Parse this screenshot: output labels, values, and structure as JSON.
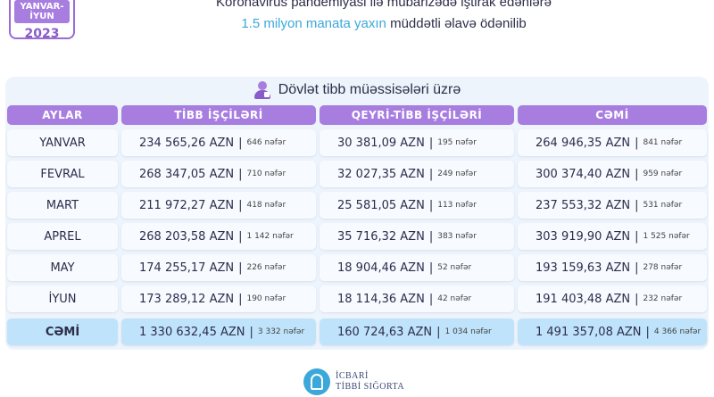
{
  "period": {
    "range": "YANVAR-İYUN",
    "year": "2023"
  },
  "headline": {
    "line1": "Koronavirus pandemiyasi ilə mübarizədə iştirak edənlərə",
    "line2_accent": "1.5 milyon manata yaxın",
    "line2_rest": " müddətli əlavə ödənilib"
  },
  "subtitle": "Dövlət tibb müəssisələri üzrə",
  "columns": [
    "AYLAR",
    "TİBB İŞÇİLƏRİ",
    "QEYRİ-TİBB İŞÇİLƏRİ",
    "CƏMİ"
  ],
  "rows": [
    {
      "month": "YANVAR",
      "med_amt": "234 565,26 AZN",
      "med_cnt": "646 nəfər",
      "non_amt": "30 381,09 AZN",
      "non_cnt": "195 nəfər",
      "tot_amt": "264 946,35 AZN",
      "tot_cnt": "841 nəfər"
    },
    {
      "month": "FEVRAL",
      "med_amt": "268 347,05 AZN",
      "med_cnt": "710 nəfər",
      "non_amt": "32 027,35 AZN",
      "non_cnt": "249 nəfər",
      "tot_amt": "300 374,40 AZN",
      "tot_cnt": "959 nəfər"
    },
    {
      "month": "MART",
      "med_amt": "211 972,27 AZN",
      "med_cnt": "418 nəfər",
      "non_amt": "25 581,05 AZN",
      "non_cnt": "113 nəfər",
      "tot_amt": "237 553,32 AZN",
      "tot_cnt": "531 nəfər"
    },
    {
      "month": "APREL",
      "med_amt": "268 203,58 AZN",
      "med_cnt": "1 142 nəfər",
      "non_amt": "35 716,32 AZN",
      "non_cnt": "383 nəfər",
      "tot_amt": "303 919,90 AZN",
      "tot_cnt": "1 525 nəfər"
    },
    {
      "month": "MAY",
      "med_amt": "174 255,17 AZN",
      "med_cnt": "226 nəfər",
      "non_amt": "18 904,46 AZN",
      "non_cnt": "52 nəfər",
      "tot_amt": "193 159,63 AZN",
      "tot_cnt": "278 nəfər"
    },
    {
      "month": "İYUN",
      "med_amt": "173 289,12 AZN",
      "med_cnt": "190 nəfər",
      "non_amt": "18 114,36 AZN",
      "non_cnt": "42 nəfər",
      "tot_amt": "191 403,48 AZN",
      "tot_cnt": "232 nəfər"
    }
  ],
  "total": {
    "month": "CƏMİ",
    "med_amt": "1 330 632,45 AZN",
    "med_cnt": "3 332 nəfər",
    "non_amt": "160 724,63 AZN",
    "non_cnt": "1 034 nəfər",
    "tot_amt": "1 491 357,08 AZN",
    "tot_cnt": "4 366 nəfər"
  },
  "logo": {
    "line1": "İCBARİ",
    "line2": "TİBBİ SIĞORTA"
  },
  "colors": {
    "header": "#a77ee0",
    "accent": "#3ba8d9",
    "total_row": "#bfe3fb",
    "panel": "#eef4fb"
  }
}
